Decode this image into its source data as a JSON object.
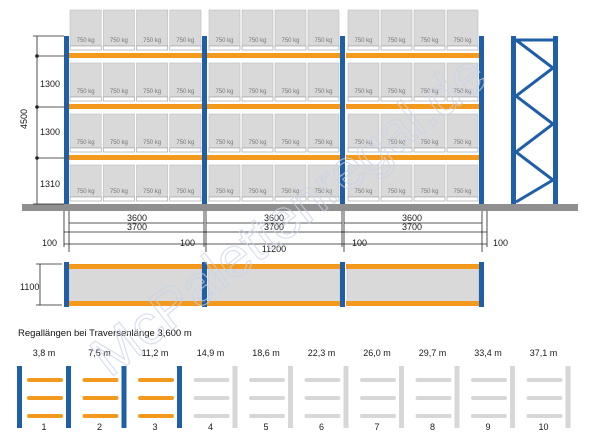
{
  "colors": {
    "upright_blue": "#1f5fa8",
    "beam_orange": "#f39a1e",
    "pallet_grey": "#d9d9d9",
    "floor_grey": "#8f8f8f",
    "inactive_grey": "#d7d7d7"
  },
  "pallet_weight_label": "750 kg",
  "level_heights": [
    "1300",
    "1300",
    "1310"
  ],
  "total_height": "4500",
  "bay_widths": [
    {
      "beam": "3600",
      "outer": "3700"
    },
    {
      "beam": "3600",
      "outer": "3700"
    },
    {
      "beam": "3600",
      "outer": "3700"
    }
  ],
  "clearance_left": "100",
  "clearance_mid_left": "100",
  "clearance_mid_right": "100",
  "clearance_right": "100",
  "total_length": "11200",
  "depth": "1100",
  "caption": "Regallängen bei Traversenlänge 3,600 m",
  "options": [
    {
      "length": "3,8 m",
      "number": "1",
      "active": true
    },
    {
      "length": "7,5 m",
      "number": "2",
      "active": true
    },
    {
      "length": "11,2 m",
      "number": "3",
      "active": true
    },
    {
      "length": "14,9 m",
      "number": "4",
      "active": false
    },
    {
      "length": "18,6 m",
      "number": "5",
      "active": false
    },
    {
      "length": "22,3 m",
      "number": "6",
      "active": false
    },
    {
      "length": "26,0 m",
      "number": "7",
      "active": false
    },
    {
      "length": "29,7 m",
      "number": "8",
      "active": false
    },
    {
      "length": "33,4 m",
      "number": "9",
      "active": false
    },
    {
      "length": "37,1 m",
      "number": "10",
      "active": false
    }
  ],
  "watermark": "McPalettenregal.de"
}
